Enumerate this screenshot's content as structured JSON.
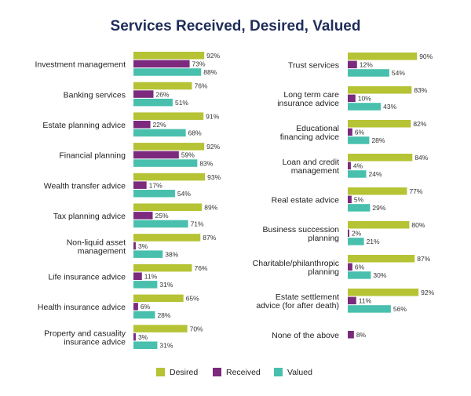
{
  "chart_data": {
    "type": "bar",
    "orientation": "horizontal",
    "title": "Services Received, Desired, Valued",
    "legend_position": "bottom",
    "grid": false,
    "xlim": [
      0,
      100
    ],
    "value_suffix": "%",
    "colors": {
      "Desired": "#b5c334",
      "Received": "#7b2a7e",
      "Valued": "#48c0ad"
    },
    "legend": [
      "Desired",
      "Received",
      "Valued"
    ],
    "panels": [
      {
        "categories": [
          [
            "Investment management"
          ],
          [
            "Banking services"
          ],
          [
            "Estate planning advice"
          ],
          [
            "Financial planning"
          ],
          [
            "Wealth transfer advice"
          ],
          [
            "Tax planning advice"
          ],
          [
            "Non-liquid asset",
            "management"
          ],
          [
            "Life insurance advice"
          ],
          [
            "Health insurance advice"
          ],
          [
            "Property and casuality",
            "insurance advice"
          ]
        ],
        "series": [
          {
            "name": "Desired",
            "values": [
              92,
              76,
              91,
              92,
              93,
              89,
              87,
              76,
              65,
              70
            ]
          },
          {
            "name": "Received",
            "values": [
              73,
              26,
              22,
              59,
              17,
              25,
              3,
              11,
              6,
              3
            ]
          },
          {
            "name": "Valued",
            "values": [
              88,
              51,
              68,
              83,
              54,
              71,
              38,
              31,
              28,
              31
            ]
          }
        ]
      },
      {
        "categories": [
          [
            "Trust services"
          ],
          [
            "Long term care",
            "insurance advice"
          ],
          [
            "Educational",
            "financing advice"
          ],
          [
            "Loan and credit",
            "management"
          ],
          [
            "Real estate advice"
          ],
          [
            "Business succession",
            "planning"
          ],
          [
            "Charitable/philanthropic",
            "planning"
          ],
          [
            "Estate settlement",
            "advice (for after death)"
          ],
          [
            "None of the above"
          ]
        ],
        "series": [
          {
            "name": "Desired",
            "values": [
              90,
              83,
              82,
              84,
              77,
              80,
              87,
              92,
              null
            ]
          },
          {
            "name": "Received",
            "values": [
              12,
              10,
              6,
              4,
              5,
              2,
              6,
              11,
              8
            ]
          },
          {
            "name": "Valued",
            "values": [
              54,
              43,
              28,
              24,
              29,
              21,
              30,
              56,
              null
            ]
          }
        ]
      }
    ]
  }
}
